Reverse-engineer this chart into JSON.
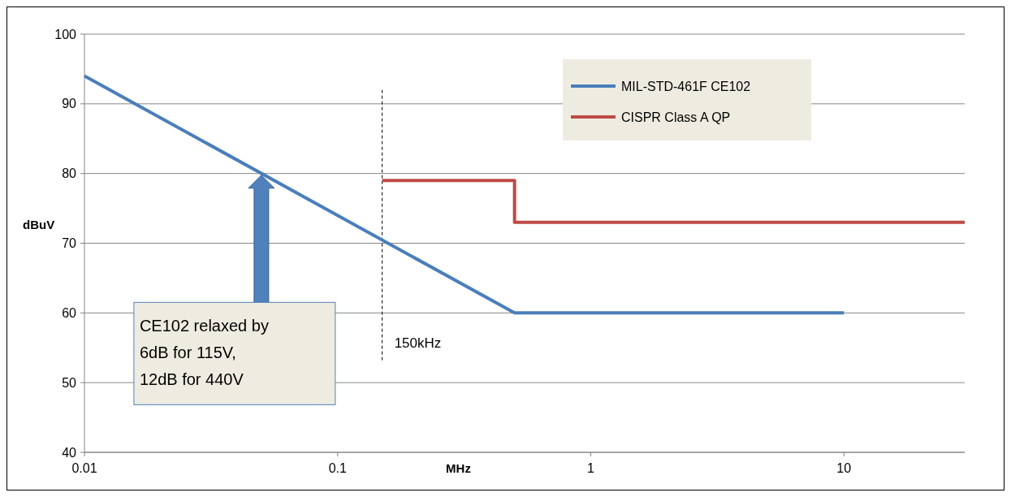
{
  "chart_data": {
    "type": "line",
    "xlabel": "MHz",
    "ylabel": "dBuV",
    "log": "x",
    "xlim": [
      0.01,
      30
    ],
    "xticks": [
      0.01,
      0.1,
      1,
      10
    ],
    "ylim": [
      40,
      100
    ],
    "yticks": [
      40,
      50,
      60,
      70,
      80,
      90,
      100
    ],
    "grid": "y",
    "legend": "top right",
    "line_style": "solid",
    "series": [
      {
        "name": "MIL-STD-461F CE102",
        "color": "#4a7ebb",
        "x": [
          0.01,
          0.5,
          10
        ],
        "values": [
          94,
          60,
          60
        ]
      },
      {
        "name": "CISPR Class A QP",
        "color": "#be4b48",
        "x": [
          0.15,
          0.5,
          0.5,
          30
        ],
        "values": [
          79,
          79,
          73,
          73
        ]
      }
    ],
    "ref_lines": [
      {
        "axis": "x",
        "value": 0.15,
        "label": "150kHz",
        "line_style": "dashed",
        "color": "#000000"
      }
    ],
    "annotations": [
      "CE102 relaxed by 6dB for 115V, 12dB for 440V"
    ]
  }
}
